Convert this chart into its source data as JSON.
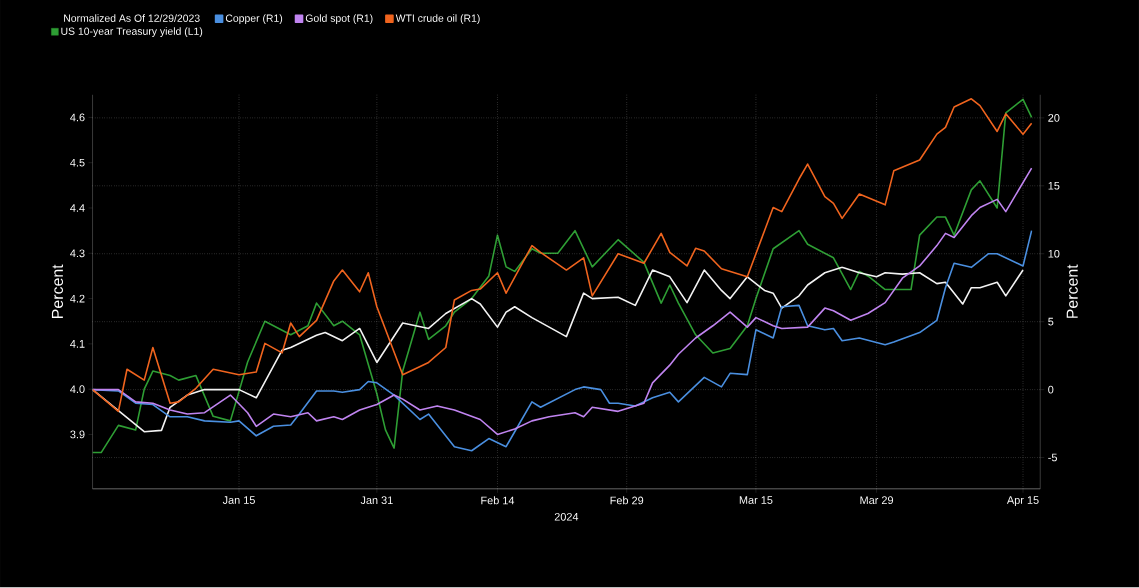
{
  "chart_data": {
    "type": "line",
    "legend_title": "Normalized As Of 12/29/2023",
    "xlabel": "2024",
    "ylabel": "Percent",
    "y2label": "Percent",
    "xlim": [
      "2023-12-29",
      "2024-04-17"
    ],
    "xticks": [
      {
        "value": "2024-01-15",
        "label": "Jan 15"
      },
      {
        "value": "2024-01-31",
        "label": "Jan 31"
      },
      {
        "value": "2024-02-14",
        "label": "Feb 14"
      },
      {
        "value": "2024-02-29",
        "label": "Feb 29"
      },
      {
        "value": "2024-03-15",
        "label": "Mar 15"
      },
      {
        "value": "2024-03-29",
        "label": "Mar 29"
      },
      {
        "value": "2024-04-15",
        "label": "Apr 15"
      }
    ],
    "ylim": [
      3.78,
      4.65
    ],
    "yticks": [
      3.9,
      {
        "value": 4.0,
        "label": "4.0"
      },
      4.1,
      4.2,
      4.3,
      4.4,
      4.5,
      4.6
    ],
    "y2lim": [
      -7.3,
      21.7
    ],
    "y2ticks": [
      -5,
      0,
      5,
      10,
      15,
      20
    ],
    "grid": true,
    "legend": "top",
    "series": [
      {
        "color": "#f2f2f2",
        "axis": "y2",
        "x": [
          "2023-12-29",
          "2024-01-04",
          "2024-01-06",
          "2024-01-07",
          "2024-01-09",
          "2024-01-11",
          "2024-01-15",
          "2024-01-17",
          "2024-01-20",
          "2024-01-21",
          "2024-01-24",
          "2024-01-25",
          "2024-01-27",
          "2024-01-29",
          "2024-01-31",
          "2024-02-03",
          "2024-02-06",
          "2024-02-08",
          "2024-02-11",
          "2024-02-12",
          "2024-02-14",
          "2024-02-15",
          "2024-02-16",
          "2024-02-18",
          "2024-02-22",
          "2024-02-24",
          "2024-02-25",
          "2024-02-28",
          "2024-03-01",
          "2024-03-03",
          "2024-03-05",
          "2024-03-07",
          "2024-03-09",
          "2024-03-11",
          "2024-03-12",
          "2024-03-14",
          "2024-03-16",
          "2024-03-17",
          "2024-03-18",
          "2024-03-20",
          "2024-03-21",
          "2024-03-23",
          "2024-03-25",
          "2024-03-27",
          "2024-03-29",
          "2024-03-30",
          "2024-04-01",
          "2024-04-03",
          "2024-04-05",
          "2024-04-06",
          "2024-04-08",
          "2024-04-09",
          "2024-04-10",
          "2024-04-12",
          "2024-04-13",
          "2024-04-15"
        ],
        "values": [
          0,
          -3.1,
          -3.0,
          -1.3,
          -0.4,
          0,
          0,
          -0.6,
          2.9,
          3.1,
          4.0,
          4.2,
          3.6,
          4.5,
          2.0,
          4.9,
          4.5,
          5.6,
          6.7,
          6.3,
          4.6,
          5.7,
          6.1,
          5.3,
          3.9,
          7.1,
          6.7,
          6.8,
          6.2,
          8.8,
          8.3,
          6.4,
          8.8,
          7.3,
          6.7,
          8.3,
          7.3,
          7.1,
          6.0,
          6.9,
          7.7,
          8.6,
          9.0,
          8.6,
          8.3,
          8.6,
          8.5,
          8.6,
          7.8,
          7.9,
          6.3,
          7.5,
          7.5,
          7.9,
          6.9,
          8.8
        ]
      },
      {
        "name": "Copper (R1)",
        "color": "#4a8fe0",
        "axis": "y2",
        "x": [
          "2023-12-29",
          "2024-01-01",
          "2024-01-03",
          "2024-01-05",
          "2024-01-07",
          "2024-01-09",
          "2024-01-11",
          "2024-01-14",
          "2024-01-15",
          "2024-01-17",
          "2024-01-19",
          "2024-01-21",
          "2024-01-22",
          "2024-01-24",
          "2024-01-26",
          "2024-01-27",
          "2024-01-29",
          "2024-01-30",
          "2024-01-31",
          "2024-02-02",
          "2024-02-05",
          "2024-02-06",
          "2024-02-09",
          "2024-02-11",
          "2024-02-13",
          "2024-02-15",
          "2024-02-16",
          "2024-02-18",
          "2024-02-19",
          "2024-02-23",
          "2024-02-24",
          "2024-02-26",
          "2024-02-27",
          "2024-02-28",
          "2024-03-01",
          "2024-03-03",
          "2024-03-05",
          "2024-03-06",
          "2024-03-09",
          "2024-03-11",
          "2024-03-12",
          "2024-03-14",
          "2024-03-15",
          "2024-03-17",
          "2024-03-18",
          "2024-03-20",
          "2024-03-21",
          "2024-03-23",
          "2024-03-24",
          "2024-03-25",
          "2024-03-27",
          "2024-03-30",
          "2024-03-31",
          "2024-04-03",
          "2024-04-05",
          "2024-04-06",
          "2024-04-07",
          "2024-04-09",
          "2024-04-11",
          "2024-04-12",
          "2024-04-15",
          "2024-04-16"
        ],
        "values": [
          0,
          -0.1,
          -1.0,
          -1.1,
          -2.0,
          -2.0,
          -2.3,
          -2.4,
          -2.3,
          -3.4,
          -2.7,
          -2.6,
          -1.8,
          -0.1,
          -0.1,
          -0.2,
          0,
          0.6,
          0.5,
          -0.4,
          -2.2,
          -1.8,
          -4.2,
          -4.5,
          -3.6,
          -4.2,
          -3.1,
          -0.9,
          -1.3,
          0,
          0.2,
          0,
          -1.0,
          -1.0,
          -1.2,
          -0.6,
          -0.2,
          -0.9,
          0.9,
          0.2,
          1.2,
          1.1,
          4.4,
          3.8,
          6.1,
          6.2,
          4.7,
          4.4,
          4.5,
          3.6,
          3.8,
          3.3,
          3.5,
          4.2,
          5.1,
          7.5,
          9.3,
          9.0,
          10.0,
          10.0,
          9.1,
          11.7
        ]
      },
      {
        "name": "Gold spot (R1)",
        "color": "#c084f0",
        "axis": "y2",
        "x": [
          "2023-12-29",
          "2024-01-01",
          "2024-01-03",
          "2024-01-05",
          "2024-01-07",
          "2024-01-09",
          "2024-01-11",
          "2024-01-14",
          "2024-01-16",
          "2024-01-17",
          "2024-01-19",
          "2024-01-21",
          "2024-01-23",
          "2024-01-24",
          "2024-01-26",
          "2024-01-27",
          "2024-01-29",
          "2024-01-31",
          "2024-02-02",
          "2024-02-03",
          "2024-02-05",
          "2024-02-07",
          "2024-02-09",
          "2024-02-12",
          "2024-02-14",
          "2024-02-16",
          "2024-02-18",
          "2024-02-20",
          "2024-02-23",
          "2024-02-24",
          "2024-02-25",
          "2024-02-28",
          "2024-03-02",
          "2024-03-03",
          "2024-03-05",
          "2024-03-06",
          "2024-03-08",
          "2024-03-10",
          "2024-03-12",
          "2024-03-14",
          "2024-03-15",
          "2024-03-17",
          "2024-03-18",
          "2024-03-21",
          "2024-03-23",
          "2024-03-24",
          "2024-03-26",
          "2024-03-28",
          "2024-03-30",
          "2024-04-01",
          "2024-04-03",
          "2024-04-05",
          "2024-04-06",
          "2024-04-07",
          "2024-04-09",
          "2024-04-10",
          "2024-04-12",
          "2024-04-13",
          "2024-04-16"
        ],
        "values": [
          0,
          0,
          -0.9,
          -1.0,
          -1.5,
          -1.8,
          -1.7,
          -0.4,
          -1.7,
          -2.7,
          -1.8,
          -2.0,
          -1.7,
          -2.3,
          -2.0,
          -2.2,
          -1.5,
          -1.1,
          -0.4,
          -0.7,
          -1.5,
          -1.2,
          -1.5,
          -2.2,
          -3.3,
          -2.9,
          -2.3,
          -2.0,
          -1.7,
          -2.0,
          -1.3,
          -1.6,
          -1.0,
          0.5,
          1.8,
          2.6,
          3.8,
          4.7,
          5.7,
          4.6,
          5.3,
          4.7,
          4.5,
          4.6,
          6.0,
          5.8,
          5.1,
          5.6,
          6.4,
          8.2,
          9.1,
          10.6,
          11.5,
          11.2,
          12.8,
          13.4,
          14.0,
          13.1,
          16.3
        ]
      },
      {
        "name": "WTI crude oil (R1)",
        "color": "#f0641e",
        "axis": "y2",
        "x": [
          "2023-12-29",
          "2024-01-01",
          "2024-01-02",
          "2024-01-04",
          "2024-01-05",
          "2024-01-07",
          "2024-01-08",
          "2024-01-10",
          "2024-01-12",
          "2024-01-15",
          "2024-01-17",
          "2024-01-18",
          "2024-01-20",
          "2024-01-21",
          "2024-01-22",
          "2024-01-24",
          "2024-01-26",
          "2024-01-27",
          "2024-01-29",
          "2024-01-30",
          "2024-01-31",
          "2024-02-03",
          "2024-02-06",
          "2024-02-08",
          "2024-02-09",
          "2024-02-11",
          "2024-02-12",
          "2024-02-14",
          "2024-02-15",
          "2024-02-18",
          "2024-02-19",
          "2024-02-22",
          "2024-02-24",
          "2024-02-25",
          "2024-02-28",
          "2024-03-02",
          "2024-03-04",
          "2024-03-05",
          "2024-03-07",
          "2024-03-08",
          "2024-03-09",
          "2024-03-11",
          "2024-03-14",
          "2024-03-16",
          "2024-03-17",
          "2024-03-18",
          "2024-03-20",
          "2024-03-21",
          "2024-03-23",
          "2024-03-24",
          "2024-03-25",
          "2024-03-27",
          "2024-03-30",
          "2024-03-31",
          "2024-04-03",
          "2024-04-05",
          "2024-04-06",
          "2024-04-07",
          "2024-04-09",
          "2024-04-10",
          "2024-04-12",
          "2024-04-13",
          "2024-04-15",
          "2024-04-16"
        ],
        "values": [
          0,
          -1.6,
          1.5,
          0.7,
          3.1,
          -1.0,
          -0.9,
          0.1,
          1.5,
          1.1,
          1.3,
          3.4,
          2.7,
          4.9,
          3.9,
          5.1,
          8.0,
          8.8,
          7.2,
          8.6,
          6.1,
          1.1,
          2.0,
          3.1,
          6.6,
          7.3,
          7.4,
          8.6,
          7.1,
          10.6,
          10.1,
          8.8,
          9.7,
          6.9,
          10.0,
          9.3,
          11.5,
          10.1,
          9.1,
          10.4,
          10.2,
          8.9,
          8.3,
          11.7,
          13.4,
          13.1,
          15.5,
          16.6,
          14.2,
          13.7,
          12.6,
          14.4,
          13.6,
          16.1,
          16.9,
          18.8,
          19.3,
          20.8,
          21.4,
          20.9,
          19.0,
          20.3,
          18.8,
          19.6
        ]
      },
      {
        "name": "US 10-year Treasury yield (L1)",
        "color": "#2e9e34",
        "axis": "y",
        "x": [
          "2023-12-29",
          "2023-12-30",
          "2024-01-01",
          "2024-01-03",
          "2024-01-04",
          "2024-01-05",
          "2024-01-07",
          "2024-01-08",
          "2024-01-10",
          "2024-01-12",
          "2024-01-14",
          "2024-01-16",
          "2024-01-18",
          "2024-01-21",
          "2024-01-23",
          "2024-01-24",
          "2024-01-26",
          "2024-01-27",
          "2024-01-29",
          "2024-01-31",
          "2024-02-01",
          "2024-02-02",
          "2024-02-03",
          "2024-02-05",
          "2024-02-06",
          "2024-02-08",
          "2024-02-09",
          "2024-02-11",
          "2024-02-13",
          "2024-02-14",
          "2024-02-15",
          "2024-02-16",
          "2024-02-18",
          "2024-02-19",
          "2024-02-21",
          "2024-02-23",
          "2024-02-25",
          "2024-02-28",
          "2024-03-02",
          "2024-03-04",
          "2024-03-05",
          "2024-03-06",
          "2024-03-08",
          "2024-03-10",
          "2024-03-12",
          "2024-03-14",
          "2024-03-15",
          "2024-03-17",
          "2024-03-20",
          "2024-03-21",
          "2024-03-24",
          "2024-03-26",
          "2024-03-27",
          "2024-03-28",
          "2024-03-30",
          "2024-04-02",
          "2024-04-03",
          "2024-04-05",
          "2024-04-06",
          "2024-04-07",
          "2024-04-09",
          "2024-04-10",
          "2024-04-12",
          "2024-04-13",
          "2024-04-15",
          "2024-04-16"
        ],
        "values": [
          3.86,
          3.86,
          3.92,
          3.91,
          4.0,
          4.04,
          4.03,
          4.02,
          4.03,
          3.94,
          3.93,
          4.06,
          4.15,
          4.12,
          4.14,
          4.19,
          4.14,
          4.15,
          4.12,
          3.99,
          3.91,
          3.87,
          4.04,
          4.17,
          4.11,
          4.14,
          4.17,
          4.2,
          4.25,
          4.34,
          4.27,
          4.26,
          4.31,
          4.3,
          4.3,
          4.35,
          4.27,
          4.33,
          4.28,
          4.19,
          4.23,
          4.19,
          4.12,
          4.08,
          4.09,
          4.14,
          4.2,
          4.31,
          4.35,
          4.32,
          4.29,
          4.22,
          4.26,
          4.25,
          4.22,
          4.22,
          4.34,
          4.38,
          4.38,
          4.34,
          4.44,
          4.46,
          4.4,
          4.61,
          4.64,
          4.6
        ]
      }
    ]
  }
}
